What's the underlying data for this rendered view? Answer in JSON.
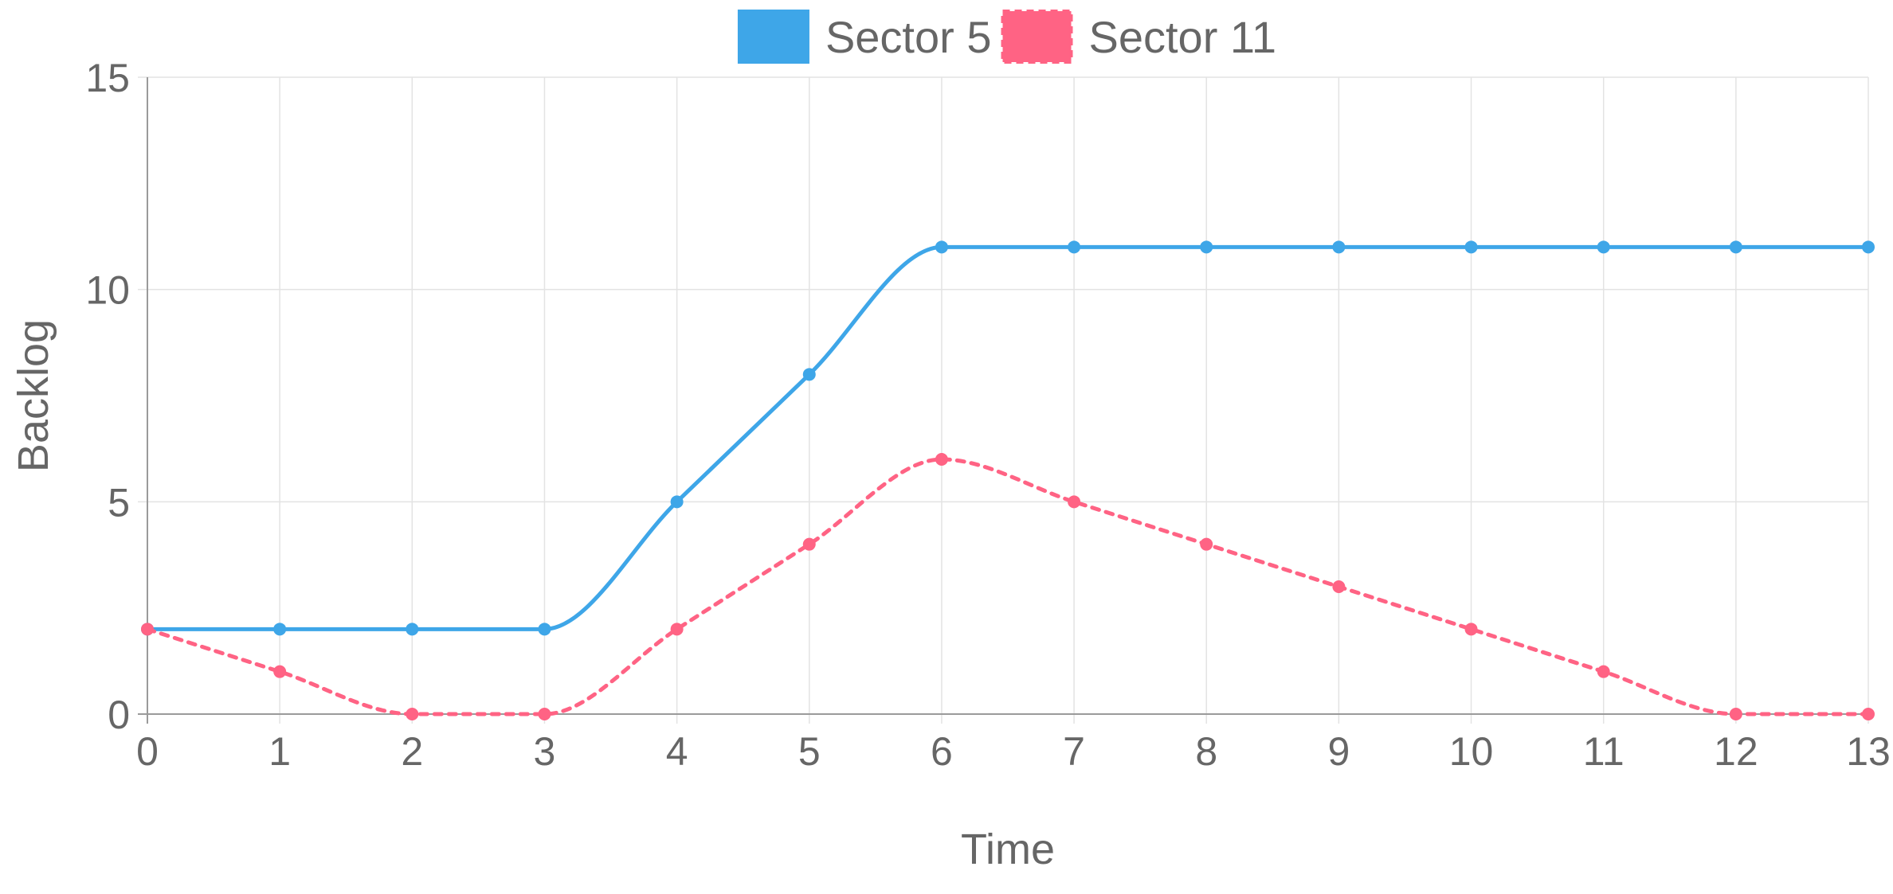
{
  "chart_data": {
    "type": "line",
    "title": "",
    "xlabel": "Time",
    "ylabel": "Backlog",
    "x": [
      0,
      1,
      2,
      3,
      4,
      5,
      6,
      7,
      8,
      9,
      10,
      11,
      12,
      13
    ],
    "xlim": [
      0,
      13
    ],
    "ylim": [
      0,
      15
    ],
    "yticks": [
      0,
      5,
      10,
      15
    ],
    "grid": true,
    "legend_position": "top-center",
    "series": [
      {
        "name": "Sector 5",
        "color": "#3ea6e8",
        "line_style": "solid",
        "smooth": true,
        "values": [
          2,
          2,
          2,
          2,
          5,
          8,
          11,
          11,
          11,
          11,
          11,
          11,
          11,
          11
        ]
      },
      {
        "name": "Sector 11",
        "color": "#ff6384",
        "line_style": "dashed",
        "smooth": true,
        "values": [
          2,
          1,
          0,
          0,
          2,
          4,
          6,
          5,
          4,
          3,
          2,
          1,
          0,
          0
        ]
      }
    ],
    "colors": {
      "grid": "#e3e3e3",
      "axis": "#9a9a9a",
      "text": "#666666"
    }
  }
}
